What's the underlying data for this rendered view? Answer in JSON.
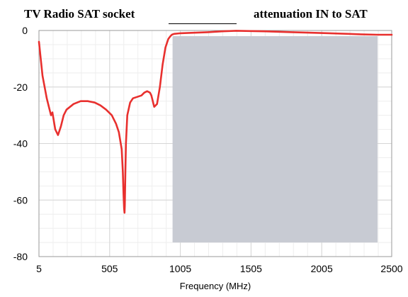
{
  "chart_data": {
    "type": "line",
    "title_left": "TV Radio SAT socket",
    "title_right": "attenuation IN to SAT",
    "xlabel": "Frequency (MHz)",
    "ylabel": "",
    "xlim": [
      5,
      2500
    ],
    "ylim": [
      -80,
      0
    ],
    "x_ticks": [
      "5",
      "505",
      "1005",
      "1505",
      "2005",
      "2500"
    ],
    "y_ticks": [
      "0",
      "-20",
      "-40",
      "-60",
      "-80"
    ],
    "grid": true,
    "shaded_band": {
      "x_start": 950,
      "x_end": 2400,
      "y_top": -2,
      "y_bottom": -75
    },
    "series": [
      {
        "color": "#e8302e",
        "x": [
          5,
          30,
          60,
          70,
          80,
          90,
          100,
          110,
          120,
          140,
          160,
          180,
          200,
          250,
          300,
          350,
          400,
          440,
          480,
          520,
          550,
          570,
          590,
          598,
          603,
          607,
          610,
          612,
          616,
          620,
          630,
          650,
          670,
          700,
          730,
          750,
          770,
          790,
          800,
          810,
          820,
          840,
          860,
          880,
          900,
          920,
          935,
          945,
          960,
          1000,
          1100,
          1200,
          1300,
          1400,
          1500,
          1600,
          1800,
          2000,
          2200,
          2300,
          2400,
          2500
        ],
        "y": [
          -4,
          -16,
          -24,
          -26,
          -28,
          -30,
          -29,
          -32,
          -35,
          -37,
          -34,
          -30,
          -28,
          -26,
          -25,
          -25,
          -25.5,
          -26.5,
          -28,
          -30,
          -33,
          -36,
          -42,
          -50,
          -58,
          -63,
          -64.5,
          -62,
          -50,
          -40,
          -30,
          -25.5,
          -24,
          -23.5,
          -23,
          -22,
          -21.5,
          -22,
          -23,
          -25,
          -27,
          -26,
          -20,
          -12,
          -6,
          -3,
          -2,
          -1.5,
          -1.2,
          -1,
          -0.8,
          -0.6,
          -0.3,
          -0.1,
          -0.2,
          -0.3,
          -0.6,
          -0.9,
          -1.2,
          -1.4,
          -1.5,
          -1.5
        ]
      }
    ]
  }
}
